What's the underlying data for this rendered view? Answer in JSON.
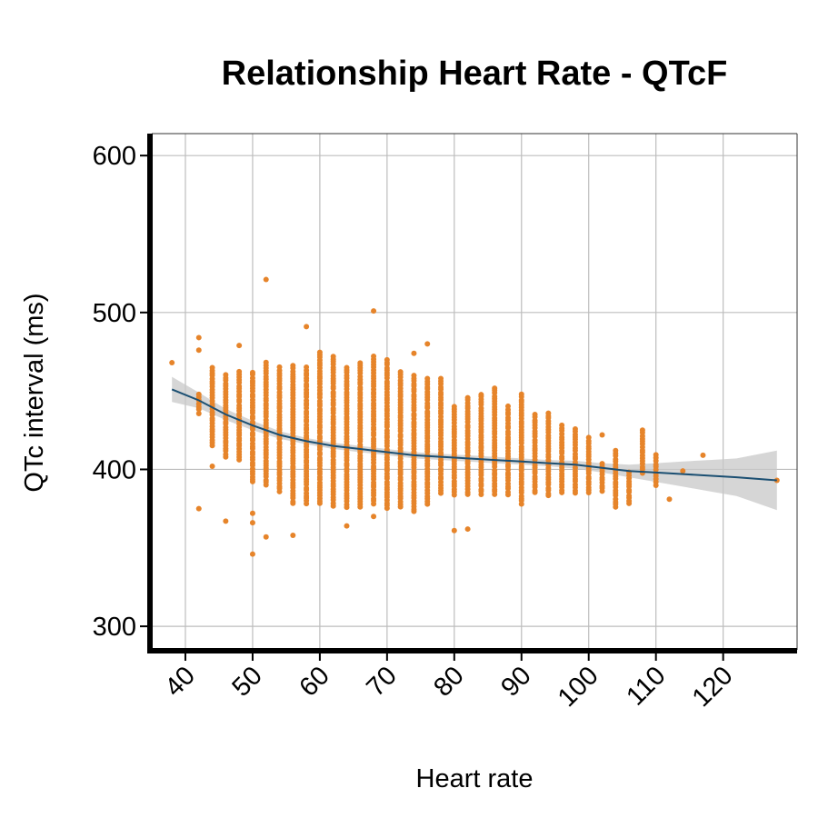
{
  "chart_data": {
    "type": "scatter",
    "title": "Relationship Heart Rate - QTcF",
    "xlabel": "Heart rate",
    "ylabel": "QTc interval (ms)",
    "xlim": [
      35,
      131
    ],
    "ylim": [
      285,
      614
    ],
    "x_ticks": [
      40,
      50,
      60,
      70,
      80,
      90,
      100,
      110,
      120
    ],
    "y_ticks": [
      300,
      400,
      500,
      600
    ],
    "grid": true,
    "colors": {
      "points": "#E6842A",
      "smooth_line": "#1B4F72",
      "confidence_band": "#C8C8C8"
    },
    "point_columns": {
      "description": "Points drawn per heart rate column: for each x the approximate QTc range [min, max] and outliers",
      "columns": [
        {
          "x": 38,
          "min": 468,
          "max": 470,
          "extra": []
        },
        {
          "x": 42,
          "min": 436,
          "max": 448,
          "extra": [
            375,
            476,
            484
          ]
        },
        {
          "x": 44,
          "min": 415,
          "max": 465,
          "extra": [
            402
          ]
        },
        {
          "x": 46,
          "min": 408,
          "max": 460,
          "extra": [
            367
          ]
        },
        {
          "x": 48,
          "min": 406,
          "max": 462,
          "extra": [
            479
          ]
        },
        {
          "x": 50,
          "min": 392,
          "max": 462,
          "extra": [
            346,
            366,
            372
          ]
        },
        {
          "x": 52,
          "min": 390,
          "max": 468,
          "extra": [
            357,
            521
          ]
        },
        {
          "x": 54,
          "min": 386,
          "max": 465,
          "extra": []
        },
        {
          "x": 56,
          "min": 378,
          "max": 466,
          "extra": [
            358
          ]
        },
        {
          "x": 58,
          "min": 378,
          "max": 465,
          "extra": [
            491
          ]
        },
        {
          "x": 60,
          "min": 378,
          "max": 475,
          "extra": []
        },
        {
          "x": 62,
          "min": 377,
          "max": 472,
          "extra": []
        },
        {
          "x": 64,
          "min": 376,
          "max": 465,
          "extra": [
            364
          ]
        },
        {
          "x": 66,
          "min": 376,
          "max": 468,
          "extra": []
        },
        {
          "x": 68,
          "min": 378,
          "max": 472,
          "extra": [
            370,
            501
          ]
        },
        {
          "x": 70,
          "min": 375,
          "max": 470,
          "extra": []
        },
        {
          "x": 72,
          "min": 376,
          "max": 462,
          "extra": []
        },
        {
          "x": 74,
          "min": 373,
          "max": 460,
          "extra": [
            474
          ]
        },
        {
          "x": 76,
          "min": 378,
          "max": 458,
          "extra": [
            480
          ]
        },
        {
          "x": 78,
          "min": 385,
          "max": 458,
          "extra": []
        },
        {
          "x": 80,
          "min": 384,
          "max": 440,
          "extra": [
            361
          ]
        },
        {
          "x": 82,
          "min": 384,
          "max": 446,
          "extra": [
            362
          ]
        },
        {
          "x": 84,
          "min": 384,
          "max": 448,
          "extra": []
        },
        {
          "x": 86,
          "min": 384,
          "max": 452,
          "extra": []
        },
        {
          "x": 88,
          "min": 384,
          "max": 440,
          "extra": []
        },
        {
          "x": 90,
          "min": 378,
          "max": 448,
          "extra": []
        },
        {
          "x": 92,
          "min": 385,
          "max": 435,
          "extra": []
        },
        {
          "x": 94,
          "min": 383,
          "max": 436,
          "extra": []
        },
        {
          "x": 96,
          "min": 385,
          "max": 428,
          "extra": []
        },
        {
          "x": 98,
          "min": 385,
          "max": 426,
          "extra": []
        },
        {
          "x": 100,
          "min": 385,
          "max": 420,
          "extra": []
        },
        {
          "x": 102,
          "min": 386,
          "max": 404,
          "extra": [
            422
          ]
        },
        {
          "x": 104,
          "min": 376,
          "max": 412,
          "extra": []
        },
        {
          "x": 106,
          "min": 378,
          "max": 398,
          "extra": []
        },
        {
          "x": 108,
          "min": 398,
          "max": 425,
          "extra": []
        },
        {
          "x": 110,
          "min": 390,
          "max": 409,
          "extra": []
        },
        {
          "x": 112,
          "min": 381,
          "max": 381,
          "extra": []
        },
        {
          "x": 114,
          "min": 399,
          "max": 399,
          "extra": []
        },
        {
          "x": 117,
          "min": 409,
          "max": 409,
          "extra": []
        },
        {
          "x": 128,
          "min": 393,
          "max": 393,
          "extra": []
        }
      ]
    },
    "smooth_curve": {
      "x": [
        38,
        42,
        46,
        50,
        54,
        58,
        62,
        66,
        70,
        74,
        78,
        82,
        86,
        90,
        94,
        98,
        102,
        106,
        110,
        114,
        118,
        122,
        128
      ],
      "y": [
        451,
        444,
        435,
        428,
        422,
        418,
        415,
        413,
        411,
        409,
        408,
        407,
        406,
        405,
        404,
        403,
        401,
        399,
        398,
        397,
        396,
        395,
        393
      ],
      "band_halfwidth": [
        8,
        5,
        3.5,
        3,
        2.5,
        2,
        2,
        2,
        2,
        2,
        2,
        2,
        2,
        2,
        2,
        2.5,
        3,
        4,
        6,
        8,
        10,
        12,
        19
      ]
    }
  }
}
